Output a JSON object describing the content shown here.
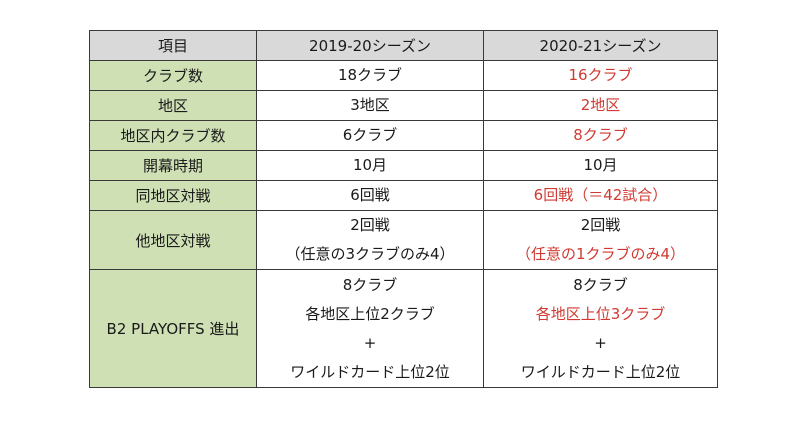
{
  "header": {
    "item": "項目",
    "season1": "2019-20シーズン",
    "season2": "2020-21シーズン"
  },
  "rows": [
    {
      "label": "クラブ数",
      "s1": [
        "18クラブ"
      ],
      "s2": [
        "16クラブ"
      ]
    },
    {
      "label": "地区",
      "s1": [
        "3地区"
      ],
      "s2": [
        "2地区"
      ]
    },
    {
      "label": "地区内クラブ数",
      "s1": [
        "6クラブ"
      ],
      "s2": [
        "8クラブ"
      ]
    },
    {
      "label": "開幕時期",
      "s1": [
        "10月"
      ],
      "s2": [
        "10月"
      ]
    },
    {
      "label": "同地区対戦",
      "s1": [
        "6回戦"
      ],
      "s2": [
        "6回戦（＝42試合）"
      ]
    },
    {
      "label": "他地区対戦",
      "s1": [
        "2回戦",
        "（任意の3クラブのみ4）"
      ],
      "s2": [
        "2回戦",
        "（任意の1クラブのみ4）"
      ]
    },
    {
      "label": "B2 PLAYOFFS 進出",
      "s1": [
        "8クラブ",
        "各地区上位2クラブ",
        "+",
        "ワイルドカード上位2位"
      ],
      "s2": [
        "8クラブ",
        "各地区上位3クラブ",
        "+",
        "ワイルドカード上位2位"
      ]
    }
  ],
  "colors": {
    "header_bg": "#d9d9d9",
    "label_bg": "#cfe0b5",
    "highlight_text": "#d03a32",
    "border": "#3a3a3a"
  }
}
